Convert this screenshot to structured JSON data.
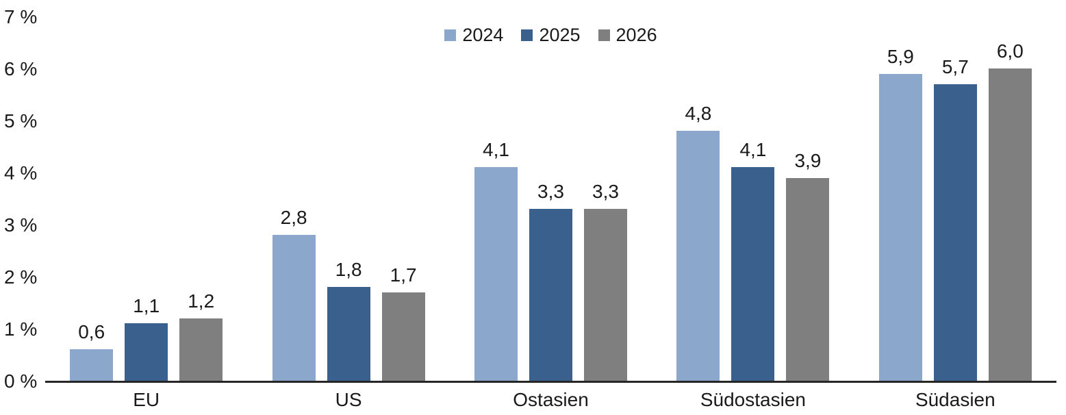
{
  "chart_data": {
    "type": "bar",
    "title": "",
    "unit": "%",
    "categories": [
      "EU",
      "US",
      "Ostasien",
      "Südostasien",
      "Südasien"
    ],
    "series": [
      {
        "name": "2024",
        "color": "#8BA8CC",
        "values": [
          0.6,
          2.8,
          4.1,
          4.8,
          5.9
        ],
        "labels": [
          "0,6",
          "2,8",
          "4,1",
          "4,8",
          "5,9"
        ]
      },
      {
        "name": "2025",
        "color": "#3A618E",
        "values": [
          1.1,
          1.8,
          3.3,
          4.1,
          5.7
        ],
        "labels": [
          "1,1",
          "1,8",
          "3,3",
          "4,1",
          "5,7"
        ]
      },
      {
        "name": "2026",
        "color": "#7F7F7F",
        "values": [
          1.2,
          1.7,
          3.3,
          3.9,
          6.0
        ],
        "labels": [
          "1,2",
          "1,7",
          "3,3",
          "3,9",
          "6,0"
        ]
      }
    ],
    "ylim": [
      0,
      7
    ],
    "yticks": [
      {
        "value": 0,
        "label": "0 %"
      },
      {
        "value": 1,
        "label": "1 %"
      },
      {
        "value": 2,
        "label": "2 %"
      },
      {
        "value": 3,
        "label": "3 %"
      },
      {
        "value": 4,
        "label": "4 %"
      },
      {
        "value": 5,
        "label": "5 %"
      },
      {
        "value": 6,
        "label": "6 %"
      },
      {
        "value": 7,
        "label": "7 %"
      }
    ],
    "grid": false,
    "legend_position": "top-center",
    "axis_line_color": "#262626",
    "text_color": "#1A1A1A",
    "background_color": "#FFFFFF"
  }
}
